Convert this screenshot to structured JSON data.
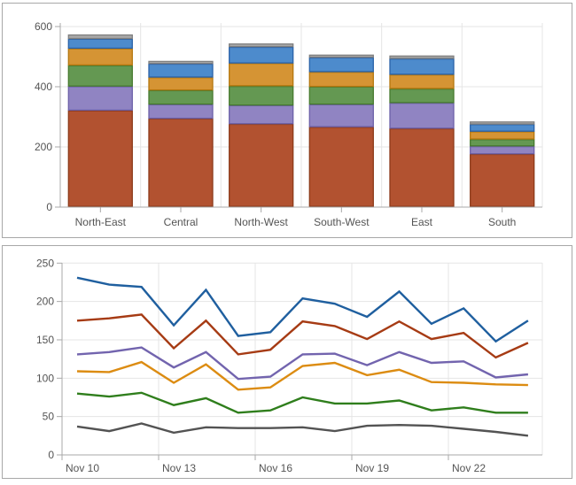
{
  "page": {
    "background": "#ffffff",
    "panel_border_color": "#a8a8a8"
  },
  "chart_data": [
    {
      "id": "region-stacked-bar-chart",
      "type": "bar",
      "stacked": true,
      "title": "",
      "xlabel": "",
      "ylabel": "",
      "categories": [
        "North-East",
        "Central",
        "North-West",
        "South-West",
        "East",
        "South"
      ],
      "series": [
        {
          "name": "rust",
          "color": "#b25230",
          "border_color": "#8c3a1a",
          "values": [
            320,
            293,
            275,
            265,
            260,
            175
          ]
        },
        {
          "name": "purple",
          "color": "#9084c2",
          "border_color": "#6c60a8",
          "values": [
            80,
            47,
            62,
            75,
            85,
            26
          ]
        },
        {
          "name": "green",
          "color": "#649852",
          "border_color": "#467a2e",
          "values": [
            70,
            47,
            64,
            59,
            47,
            23
          ]
        },
        {
          "name": "orange",
          "color": "#d59434",
          "border_color": "#b4770e",
          "values": [
            56,
            43,
            76,
            49,
            47,
            26
          ]
        },
        {
          "name": "blue",
          "color": "#4d8bcc",
          "border_color": "#2a62a8",
          "values": [
            32,
            45,
            54,
            48,
            53,
            24
          ]
        },
        {
          "name": "gray",
          "color": "#a8a8a8",
          "border_color": "#7f7f7f",
          "values": [
            14,
            9,
            11,
            9,
            10,
            9
          ]
        }
      ],
      "totals": [
        572,
        484,
        542,
        505,
        502,
        283
      ],
      "ylim": [
        0,
        600
      ],
      "y_ticks": [
        0,
        200,
        400,
        600
      ],
      "grid": true,
      "legend": "none",
      "axis_color": "#a8a8a8",
      "grid_color": "#e5e5e5",
      "label_color": "#545454"
    },
    {
      "id": "daily-line-chart",
      "type": "line",
      "title": "",
      "xlabel": "",
      "ylabel": "",
      "x": [
        "Nov 10",
        "Nov 11",
        "Nov 12",
        "Nov 13",
        "Nov 14",
        "Nov 15",
        "Nov 16",
        "Nov 17",
        "Nov 18",
        "Nov 19",
        "Nov 20",
        "Nov 21",
        "Nov 22",
        "Nov 23",
        "Nov 24"
      ],
      "x_tick_indices": [
        0,
        3,
        6,
        9,
        12
      ],
      "x_tick_labels": [
        "Nov 10",
        "Nov 13",
        "Nov 16",
        "Nov 19",
        "Nov 22"
      ],
      "series": [
        {
          "name": "blue",
          "color": "#1f5f9f",
          "values": [
            231,
            222,
            219,
            169,
            215,
            155,
            160,
            204,
            197,
            180,
            213,
            171,
            191,
            148,
            175
          ]
        },
        {
          "name": "red",
          "color": "#a63b14",
          "values": [
            175,
            178,
            183,
            139,
            175,
            131,
            137,
            174,
            168,
            151,
            174,
            151,
            159,
            127,
            146
          ]
        },
        {
          "name": "purple",
          "color": "#7264ae",
          "values": [
            131,
            134,
            140,
            114,
            134,
            99,
            102,
            131,
            132,
            117,
            134,
            120,
            122,
            101,
            105
          ]
        },
        {
          "name": "orange",
          "color": "#dc8c12",
          "values": [
            109,
            108,
            121,
            94,
            118,
            85,
            88,
            116,
            120,
            104,
            111,
            95,
            94,
            92,
            91
          ]
        },
        {
          "name": "green",
          "color": "#2f7e1c",
          "values": [
            80,
            76,
            81,
            65,
            74,
            55,
            58,
            75,
            67,
            67,
            71,
            58,
            62,
            55,
            55
          ]
        },
        {
          "name": "gray",
          "color": "#535353",
          "values": [
            37,
            31,
            41,
            29,
            36,
            35,
            35,
            36,
            31,
            38,
            39,
            38,
            34,
            30,
            25
          ]
        }
      ],
      "ylim": [
        0,
        250
      ],
      "y_ticks": [
        0,
        50,
        100,
        150,
        200,
        250
      ],
      "grid": true,
      "legend": "none",
      "axis_color": "#a8a8a8",
      "grid_color": "#e5e5e5",
      "label_color": "#545454"
    }
  ]
}
